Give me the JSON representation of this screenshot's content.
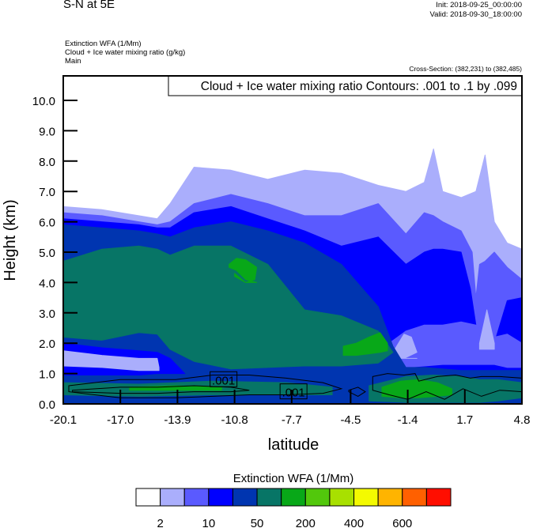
{
  "header": {
    "title": "S-N at 5E",
    "init": "Init: 2018-09-25_00:00:00",
    "valid": "Valid: 2018-09-30_18:00:00",
    "fields": [
      "Extinction WFA   (1/Mm)",
      "Cloud + Ice water mixing ratio   (g/kg)",
      "Main"
    ],
    "cross_section": "Cross-Section: (382,231) to (382,485)"
  },
  "chart_data": {
    "type": "heatmap",
    "subtype": "filled-contour cross-section",
    "contour_title": "Cloud + Ice water mixing ratio Contours: .001 to .1 by .099",
    "xlabel": "latitude",
    "ylabel": "Height (km)",
    "xlim": [
      -20.1,
      4.8
    ],
    "ylim": [
      0,
      10.8
    ],
    "xticks": [
      -20.1,
      -17.0,
      -13.9,
      -10.8,
      -7.7,
      -4.5,
      -1.4,
      1.7,
      4.8
    ],
    "xtick_labels": [
      "-20.1",
      "-17.0",
      "-13.9",
      "-10.8",
      "-7.7",
      "-4.5",
      "-1.4",
      "1.7",
      "4.8"
    ],
    "yticks": [
      0,
      1,
      2,
      3,
      4,
      5,
      6,
      7,
      8,
      9,
      10
    ],
    "ytick_labels": [
      "0.0",
      "1.0",
      "2.0",
      "3.0",
      "4.0",
      "5.0",
      "6.0",
      "7.0",
      "8.0",
      "9.0",
      "10.0"
    ],
    "colorbar": {
      "title": "Extinction WFA  (1/Mm)",
      "colors": [
        "#ffffff",
        "#aaaefc",
        "#5a5aff",
        "#0000ff",
        "#0035b0",
        "#077566",
        "#08a818",
        "#52c80c",
        "#a8e000",
        "#f4fa00",
        "#ffb400",
        "#ff6000",
        "#ff0e00"
      ],
      "labels": [
        {
          "after_box": 1,
          "text": "2"
        },
        {
          "after_box": 3,
          "text": "10"
        },
        {
          "after_box": 5,
          "text": "50"
        },
        {
          "after_box": 7,
          "text": "200"
        },
        {
          "after_box": 9,
          "text": "400"
        },
        {
          "after_box": 11,
          "text": "600"
        }
      ]
    },
    "bands": [
      {
        "level": 1,
        "lat": [
          -20.1,
          -18,
          -16,
          -15,
          -14.3,
          -13,
          -11,
          -9,
          -7,
          -5,
          -3,
          -1.5,
          -0.5,
          0,
          0.5,
          1.5,
          2.3,
          2.8,
          3.3,
          4,
          4.8
        ],
        "top": [
          6.5,
          6.4,
          6.2,
          6.1,
          6.6,
          7.8,
          7.7,
          7.4,
          7.7,
          7.6,
          7.2,
          7.0,
          7.3,
          8.4,
          7.0,
          6.8,
          7.0,
          8.2,
          6.0,
          5.3,
          5.1
        ]
      },
      {
        "level": 2,
        "lat": [
          -20.1,
          -18,
          -16,
          -15,
          -14.3,
          -13,
          -11,
          -9,
          -7,
          -5,
          -3,
          -1.5,
          -0.5,
          0,
          0.5,
          1.5,
          2.1,
          2.3,
          2.5,
          2.8,
          3.3,
          4,
          4.8
        ],
        "top": [
          6.3,
          6.2,
          6.0,
          5.9,
          6.0,
          6.6,
          6.9,
          6.6,
          6.2,
          6.2,
          6.6,
          5.6,
          6.3,
          6.2,
          6.0,
          5.7,
          5.0,
          3.5,
          4.6,
          4.7,
          5.0,
          4.5,
          4.1
        ]
      },
      {
        "level": 3,
        "lat": [
          -20.1,
          -18,
          -16,
          -15,
          -14.3,
          -13,
          -11,
          -9,
          -7,
          -5,
          -3,
          -1.5,
          -0.5,
          0,
          0.5,
          1.5,
          2.0,
          2.3,
          2.8,
          3.3,
          4,
          4.8
        ],
        "top": [
          6.1,
          6.0,
          5.9,
          5.8,
          5.8,
          6.3,
          6.5,
          6.1,
          5.7,
          5.2,
          5.5,
          4.6,
          5.0,
          5.1,
          5.1,
          5.0,
          3.8,
          2.6,
          2.2,
          2.0,
          3.4,
          3.5
        ]
      },
      {
        "level": 2,
        "lat": [
          -2.4,
          -1.5,
          -0.5,
          0.5,
          1.5,
          2.3,
          3.3,
          4,
          4.8
        ],
        "top": [
          2.0,
          2.4,
          2.6,
          2.6,
          2.7,
          2.6,
          2.2,
          2.3,
          2.0
        ],
        "bottom": [
          1.3,
          1.2,
          1.25,
          1.3,
          1.3,
          1.3,
          1.3,
          1.2,
          1.2
        ]
      },
      {
        "level": 1,
        "lat": [
          -2.2,
          -1.6,
          -1.2,
          -0.9,
          -1.6,
          -2.2
        ],
        "top": [
          1.7,
          2.3,
          2.2,
          1.7,
          1.5,
          1.5
        ],
        "bottom": [
          1.5,
          1.5,
          1.5,
          1.5,
          1.5,
          1.5
        ]
      },
      {
        "level": 1,
        "lat": [
          2.5,
          2.9,
          3.3
        ],
        "top": [
          2.0,
          3.1,
          2.0
        ],
        "bottom": [
          1.8,
          1.8,
          1.8
        ]
      },
      {
        "level": 4,
        "lat": [
          -20.1,
          -18,
          -16,
          -15,
          -14.3,
          -13,
          -11,
          -9,
          -7,
          -5,
          -3,
          -2.2,
          -1.5,
          -0.5,
          0.5,
          1.5,
          2.3,
          3.3,
          4,
          4.8
        ],
        "top": [
          5.9,
          5.8,
          5.7,
          5.6,
          5.5,
          5.8,
          6.0,
          5.7,
          5.3,
          4.6,
          3.2,
          1.9,
          1.2,
          1.2,
          1.15,
          1.1,
          1.1,
          1.1,
          1.1,
          1.1
        ]
      },
      {
        "level": 3,
        "lat": [
          -20.1,
          -18,
          -16,
          -15,
          -14.3,
          -13.5
        ],
        "top": [
          2.0,
          1.85,
          1.75,
          1.7,
          1.5,
          1.0
        ],
        "bottom": [
          0.95,
          0.95,
          0.95,
          1.0,
          1.0,
          1.0
        ]
      },
      {
        "level": 1,
        "lat": [
          -20.1,
          -18,
          -16,
          -15,
          -14.9
        ],
        "top": [
          1.75,
          1.6,
          1.5,
          1.5,
          1.2
        ],
        "bottom": [
          1.25,
          1.2,
          1.1,
          1.1,
          1.1
        ]
      },
      {
        "level": 5,
        "lat": [
          -20.1,
          -18,
          -16,
          -15,
          -14.3,
          -13,
          -11,
          -9,
          -7,
          -5,
          -3,
          -2.2
        ],
        "top": [
          4.7,
          5.1,
          5.2,
          5.1,
          4.9,
          5.2,
          5.2,
          4.6,
          3.1,
          2.9,
          2.4,
          1.7
        ],
        "bottom": [
          2.2,
          2.1,
          2.35,
          2.3,
          1.8,
          1.4,
          1.15,
          1.2,
          1.25,
          1.25,
          1.35,
          1.7
        ]
      },
      {
        "level": 6,
        "lat": [
          -11.1,
          -10.7,
          -10.2,
          -9.6,
          -9.7,
          -10.2,
          -10.8
        ],
        "top": [
          4.6,
          4.8,
          4.75,
          4.5,
          4.1,
          4.0,
          4.3
        ],
        "bottom": [
          4.5,
          4.4,
          4.1,
          4.0,
          4.0,
          4.0,
          4.2
        ]
      },
      {
        "level": 6,
        "lat": [
          -4.9,
          -4.2,
          -3.5,
          -2.9,
          -2.5
        ],
        "top": [
          1.9,
          2.0,
          2.2,
          2.35,
          2.0
        ],
        "bottom": [
          1.6,
          1.6,
          1.65,
          1.7,
          1.75
        ]
      },
      {
        "level": 5,
        "lat": [
          -20.1,
          -16,
          -12,
          -8,
          -5.5
        ],
        "top": [
          0.7,
          0.65,
          0.75,
          0.7,
          0.55
        ],
        "bottom": [
          0.3,
          0.25,
          0.3,
          0.3,
          0.3
        ]
      },
      {
        "level": 5,
        "lat": [
          -3.5,
          -1.5,
          0,
          1.5,
          2.5,
          3.5,
          4.8
        ],
        "top": [
          0.6,
          0.9,
          0.95,
          0.9,
          0.8,
          0.8,
          0.7
        ],
        "bottom": [
          0.1,
          0.05,
          0.05,
          0.05,
          0.05,
          0.1,
          0.2
        ]
      },
      {
        "level": 6,
        "lat": [
          -2.8,
          -1.8,
          -0.8,
          0.2,
          1.0
        ],
        "top": [
          0.55,
          0.75,
          0.8,
          0.7,
          0.5
        ],
        "bottom": [
          0.25,
          0.2,
          0.2,
          0.25,
          0.3
        ]
      },
      {
        "level": 6,
        "lat": [
          -16.5,
          -14,
          -11.5
        ],
        "top": [
          0.55,
          0.6,
          0.55
        ],
        "bottom": [
          0.45,
          0.45,
          0.45
        ]
      }
    ],
    "contours": [
      {
        "value": ".001",
        "lat": [
          -19.8,
          -17,
          -14,
          -12,
          -10,
          -8,
          -6,
          -5,
          -6,
          -8,
          -10,
          -12,
          -14,
          -17,
          -19.8
        ],
        "h": [
          0.6,
          0.8,
          0.8,
          0.95,
          0.95,
          0.85,
          0.7,
          0.5,
          0.35,
          0.3,
          0.3,
          0.25,
          0.2,
          0.2,
          0.4
        ]
      },
      {
        "value": ".001",
        "lat": [
          -19.6,
          -17,
          -15,
          -13,
          -11,
          -10,
          -11,
          -13,
          -15,
          -17,
          -19.6
        ],
        "h": [
          0.45,
          0.55,
          0.55,
          0.6,
          0.55,
          0.45,
          0.4,
          0.4,
          0.35,
          0.35,
          0.4
        ]
      },
      {
        "value": ".001",
        "lat": [
          -3.3,
          -2.5,
          -1.6,
          -1.0,
          -0.8,
          0.2,
          1.2,
          2.0,
          2.6,
          3.6,
          4.8,
          4.8,
          3.6,
          2.6,
          1.6,
          0.6,
          -0.4,
          -1.4,
          -2.4,
          -3.3
        ],
        "h": [
          0.9,
          1.0,
          0.95,
          1.0,
          0.75,
          0.9,
          0.95,
          0.85,
          0.9,
          0.9,
          0.85,
          0.4,
          0.45,
          0.25,
          0.5,
          0.15,
          0.4,
          0.15,
          0.3,
          0.45
        ]
      },
      {
        "value": ".001",
        "lat": [
          -4.6,
          -4.1,
          -3.7,
          -4.1,
          -4.6
        ],
        "h": [
          0.45,
          0.55,
          0.4,
          0.25,
          0.4
        ]
      }
    ],
    "contour_labels": [
      {
        "lat": -11.4,
        "h": 0.8,
        "text": ".001"
      },
      {
        "lat": -7.6,
        "h": 0.4,
        "text": ".001"
      }
    ]
  }
}
